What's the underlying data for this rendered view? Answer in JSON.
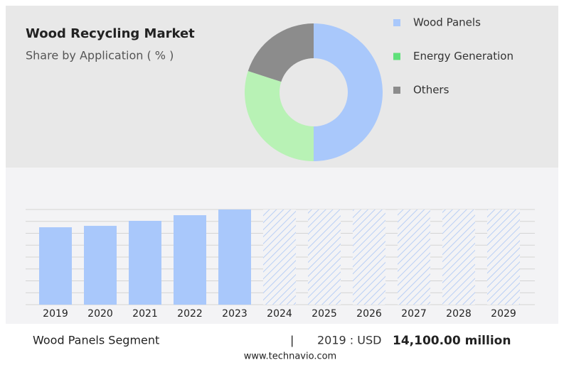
{
  "chart_data": [
    {
      "type": "donut",
      "title": "Wood Recycling Market",
      "subtitle": "Share by Application ( % )",
      "categories": [
        "Wood Panels",
        "Energy Generation",
        "Others"
      ],
      "values": [
        50,
        30,
        20
      ],
      "colors": [
        "#a9c8fb",
        "#b8f2b5",
        "#8c8c8c"
      ],
      "legend_colors": [
        "#a9c8fb",
        "#5fe07a",
        "#8c8c8c"
      ]
    },
    {
      "type": "bar",
      "categories": [
        "2019",
        "2020",
        "2021",
        "2022",
        "2023",
        "2024",
        "2025",
        "2026",
        "2027",
        "2028",
        "2029"
      ],
      "values": [
        14100,
        14360,
        15270,
        16300,
        17340,
        null,
        null,
        null,
        null,
        null,
        null
      ],
      "color": "#a9c8fb",
      "ylim": [
        0,
        17340
      ],
      "grid": true,
      "segment": "Wood Panels Segment",
      "separator": "|",
      "highlight_prefix": "2019 : USD",
      "highlight_value": "14,100.00 million",
      "source": "www.technavio.com"
    }
  ]
}
